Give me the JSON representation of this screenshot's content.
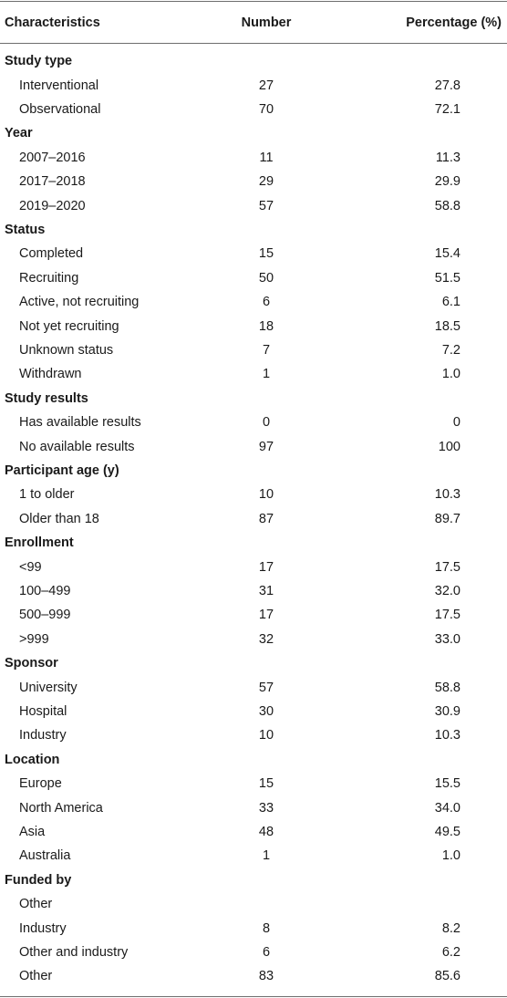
{
  "header": {
    "characteristics": "Characteristics",
    "number": "Number",
    "percentage": "Percentage (%)"
  },
  "rows": [
    {
      "type": "section",
      "label": "Study type"
    },
    {
      "type": "item",
      "label": "Interventional",
      "number": "27",
      "percent": "27.8"
    },
    {
      "type": "item",
      "label": "Observational",
      "number": "70",
      "percent": "72.1"
    },
    {
      "type": "section",
      "label": "Year"
    },
    {
      "type": "item",
      "label": "2007–2016",
      "number": "11",
      "percent": "11.3"
    },
    {
      "type": "item",
      "label": "2017–2018",
      "number": "29",
      "percent": "29.9"
    },
    {
      "type": "item",
      "label": "2019–2020",
      "number": "57",
      "percent": "58.8"
    },
    {
      "type": "section",
      "label": "Status"
    },
    {
      "type": "item",
      "label": "Completed",
      "number": "15",
      "percent": "15.4"
    },
    {
      "type": "item",
      "label": "Recruiting",
      "number": "50",
      "percent": "51.5"
    },
    {
      "type": "item",
      "label": "Active, not recruiting",
      "number": "6",
      "percent": "6.1"
    },
    {
      "type": "item",
      "label": "Not yet recruiting",
      "number": "18",
      "percent": "18.5"
    },
    {
      "type": "item",
      "label": "Unknown status",
      "number": "7",
      "percent": "7.2"
    },
    {
      "type": "item",
      "label": "Withdrawn",
      "number": "1",
      "percent": "1.0"
    },
    {
      "type": "section",
      "label": "Study results"
    },
    {
      "type": "item",
      "label": "Has available results",
      "number": "0",
      "percent": "0"
    },
    {
      "type": "item",
      "label": "No available results",
      "number": "97",
      "percent": "100"
    },
    {
      "type": "section",
      "label": "Participant age (y)"
    },
    {
      "type": "item",
      "label": "1 to older",
      "number": "10",
      "percent": "10.3"
    },
    {
      "type": "item",
      "label": "Older than 18",
      "number": "87",
      "percent": "89.7"
    },
    {
      "type": "section",
      "label": "Enrollment"
    },
    {
      "type": "item",
      "label": "<99",
      "number": "17",
      "percent": "17.5"
    },
    {
      "type": "item",
      "label": "100–499",
      "number": "31",
      "percent": "32.0"
    },
    {
      "type": "item",
      "label": "500–999",
      "number": "17",
      "percent": "17.5"
    },
    {
      "type": "item",
      "label": ">999",
      "number": "32",
      "percent": "33.0"
    },
    {
      "type": "section",
      "label": "Sponsor"
    },
    {
      "type": "item",
      "label": "University",
      "number": "57",
      "percent": "58.8"
    },
    {
      "type": "item",
      "label": "Hospital",
      "number": "30",
      "percent": "30.9"
    },
    {
      "type": "item",
      "label": "Industry",
      "number": "10",
      "percent": "10.3"
    },
    {
      "type": "section",
      "label": "Location"
    },
    {
      "type": "item",
      "label": "Europe",
      "number": "15",
      "percent": "15.5"
    },
    {
      "type": "item",
      "label": "North America",
      "number": "33",
      "percent": "34.0"
    },
    {
      "type": "item",
      "label": "Asia",
      "number": "48",
      "percent": "49.5"
    },
    {
      "type": "item",
      "label": "Australia",
      "number": "1",
      "percent": "1.0"
    },
    {
      "type": "section",
      "label": "Funded by"
    },
    {
      "type": "item",
      "label": "Other",
      "number": "",
      "percent": ""
    },
    {
      "type": "item",
      "label": "Industry",
      "number": "8",
      "percent": "8.2"
    },
    {
      "type": "item",
      "label": "Other and industry",
      "number": "6",
      "percent": "6.2"
    },
    {
      "type": "item",
      "label": "Other",
      "number": "83",
      "percent": "85.6"
    }
  ]
}
